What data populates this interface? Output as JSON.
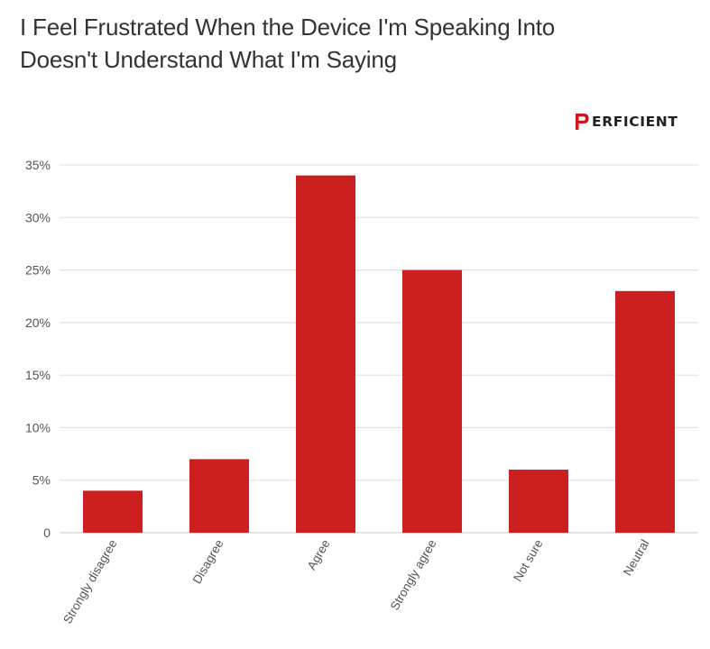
{
  "title_lines": [
    "I Feel Frustrated When the Device I'm Speaking Into",
    "Doesn't Understand What I'm Saying"
  ],
  "logo": {
    "initial": "P",
    "rest": "ERFICIENT",
    "accent_color": "#d0161d"
  },
  "chart_data": {
    "type": "bar",
    "title": "I Feel Frustrated When the Device I'm Speaking Into Doesn't Understand What I'm Saying",
    "categories": [
      "Strongly disagree",
      "Disagree",
      "Agree",
      "Strongly agree",
      "Not sure",
      "Neutral"
    ],
    "values": [
      4,
      7,
      34,
      25,
      6,
      23
    ],
    "ylim": [
      0,
      35
    ],
    "yticks": [
      0,
      5,
      10,
      15,
      20,
      25,
      30,
      35
    ],
    "ytick_labels": [
      "0",
      "5%",
      "10%",
      "15%",
      "20%",
      "25%",
      "30%",
      "35%"
    ],
    "xlabel": "",
    "ylabel": "",
    "bar_color": "#cc1f1f",
    "grid": true
  }
}
